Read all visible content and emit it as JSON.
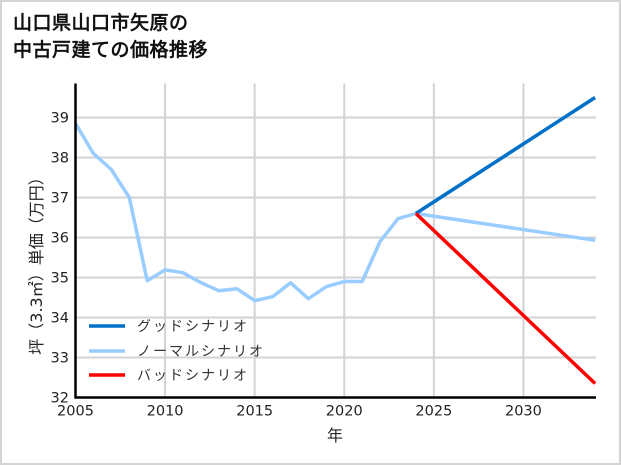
{
  "title": {
    "line1": "山口県山口市矢原の",
    "line2": "中古戸建ての価格推移"
  },
  "chart_data": {
    "type": "line",
    "title": "山口県山口市矢原の中古戸建ての価格推移",
    "xlabel": "年",
    "ylabel": "坪（3.3㎡）単価（万円）",
    "xlim": [
      2005,
      2034
    ],
    "ylim": [
      32,
      39.85
    ],
    "xticks": [
      2005,
      2010,
      2015,
      2020,
      2025,
      2030
    ],
    "yticks": [
      32,
      33,
      34,
      35,
      36,
      37,
      38,
      39
    ],
    "grid": true,
    "legend_position": "lower left",
    "series": [
      {
        "name": "グッドシナリオ",
        "color": "#0070c8",
        "x": [
          2024,
          2034
        ],
        "values": [
          36.6,
          39.5
        ]
      },
      {
        "name": "ノーマルシナリオ",
        "color": "#99ccff",
        "x": [
          2005,
          2006,
          2007,
          2008,
          2009,
          2010,
          2011,
          2012,
          2013,
          2014,
          2015,
          2016,
          2017,
          2018,
          2019,
          2020,
          2021,
          2022,
          2023,
          2024,
          2034
        ],
        "values": [
          38.85,
          38.1,
          37.7,
          37.0,
          34.92,
          35.19,
          35.12,
          34.87,
          34.67,
          34.72,
          34.42,
          34.52,
          34.87,
          34.47,
          34.77,
          34.9,
          34.9,
          35.9,
          36.47,
          36.6,
          35.93
        ]
      },
      {
        "name": "バッドシナリオ",
        "color": "#ff0000",
        "x": [
          2024,
          2034
        ],
        "values": [
          36.6,
          32.35
        ]
      }
    ]
  },
  "colors": {
    "grid": "#d3d3d3",
    "axis": "#000000",
    "frame": "#d4d4d4"
  }
}
